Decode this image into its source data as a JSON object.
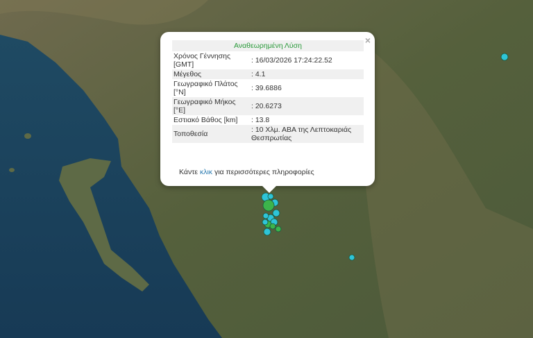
{
  "popup": {
    "title": "Αναθεωρημένη Λύση",
    "close_icon": "close-icon",
    "rows": [
      {
        "label": "Χρόνος Γέννησης [GMT]",
        "value": ": 16/03/2026 17:24:22.52"
      },
      {
        "label": "Μέγεθος",
        "value": ": 4.1"
      },
      {
        "label": "Γεωγραφικό Πλάτος [°N]",
        "value": ": 39.6886"
      },
      {
        "label": "Γεωγραφικό Μήκος [°E]",
        "value": ": 20.6273"
      },
      {
        "label": "Εστιακό Βάθος [km]",
        "value": ": 13.8"
      },
      {
        "label": "Τοποθεσία",
        "value": ": 10 Χλμ. ΑΒΑ της Λεπτοκαριάς Θεσπρωτίας"
      }
    ],
    "more_prefix": "Κάντε ",
    "more_link": "κλικ",
    "more_suffix": " για περισσότερες πληροφορίες"
  },
  "colors": {
    "marker_cyan": "#2ec4d8",
    "marker_green": "#3cb44b",
    "title_green": "#2a9a3a",
    "link": "#2a7ab0"
  },
  "markers": [
    {
      "color": "cyan"
    },
    {
      "color": "cyan"
    },
    {
      "color": "cyan"
    },
    {
      "color": "green",
      "large": true
    },
    {
      "color": "cyan"
    },
    {
      "color": "cyan"
    },
    {
      "color": "cyan"
    },
    {
      "color": "cyan"
    },
    {
      "color": "green"
    },
    {
      "color": "green"
    },
    {
      "color": "cyan"
    },
    {
      "color": "green"
    },
    {
      "color": "cyan"
    },
    {
      "color": "cyan"
    },
    {
      "color": "cyan"
    }
  ]
}
